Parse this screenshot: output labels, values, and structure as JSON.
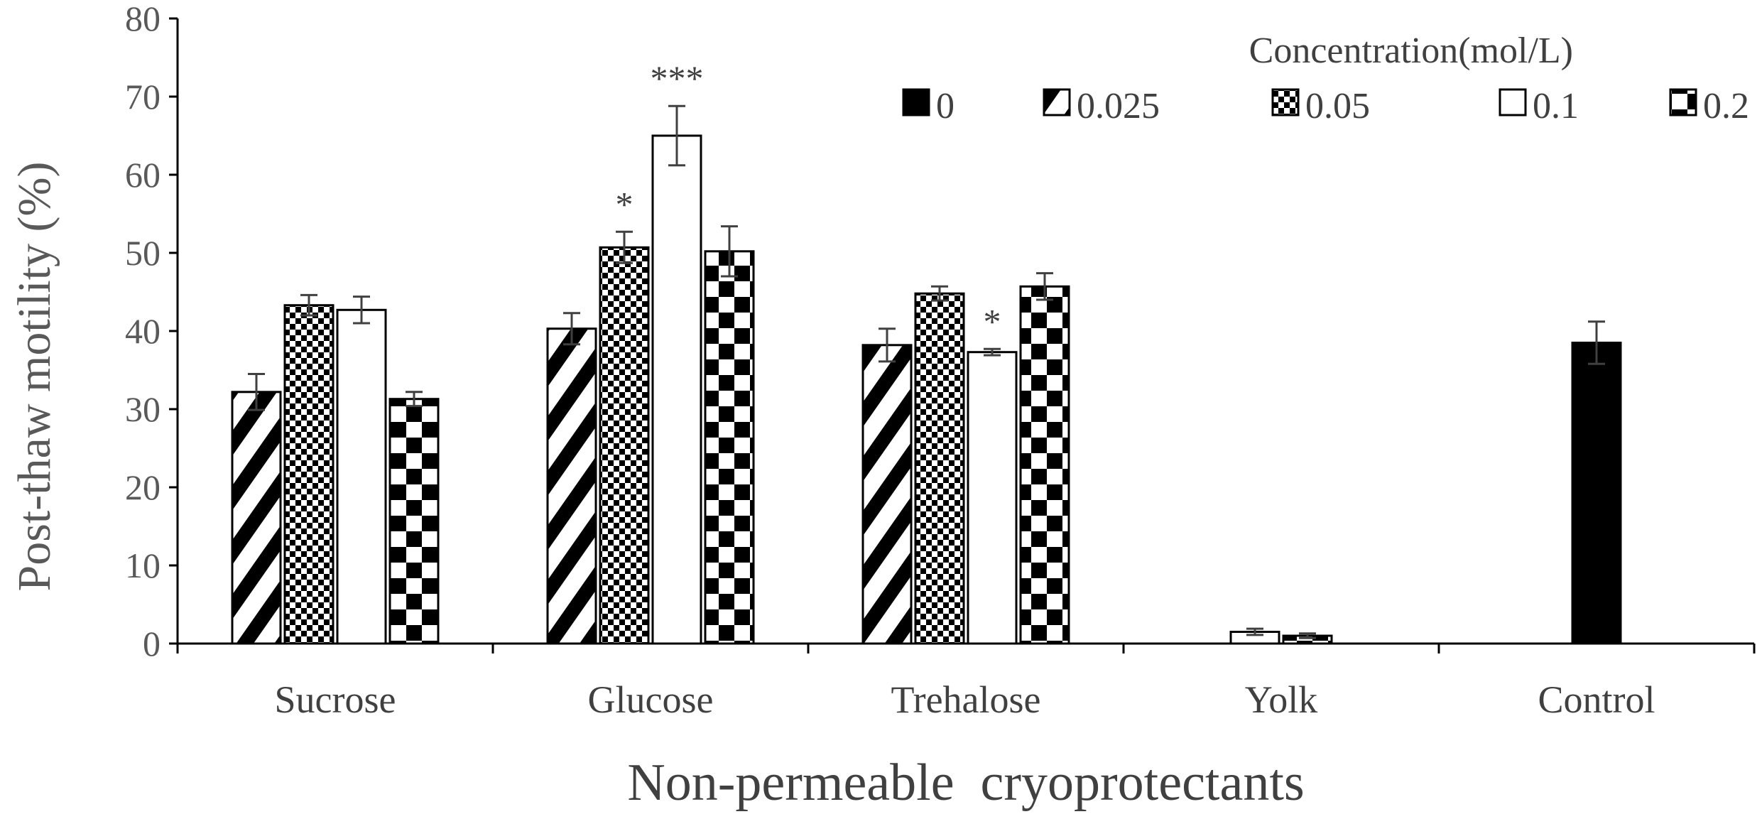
{
  "chart_data": {
    "type": "bar",
    "title": "",
    "xlabel": "Non-permeable  cryoprotectants",
    "ylabel": "Post-thaw motility (%)",
    "ylim": [
      0,
      80
    ],
    "yticks": [
      0,
      10,
      20,
      30,
      40,
      50,
      60,
      70,
      80
    ],
    "grid": false,
    "legend_title": "Concentration(mol/L)",
    "legend_position": "top-right",
    "categories": [
      "Sucrose",
      "Glucose",
      "Trehalose",
      "Yolk",
      "Control"
    ],
    "series": [
      {
        "name": "0",
        "pattern": "solid",
        "values": [
          null,
          null,
          null,
          null,
          38.5
        ],
        "errors": [
          null,
          null,
          null,
          null,
          2.7
        ]
      },
      {
        "name": "0.025",
        "pattern": "diagonal",
        "values": [
          32.2,
          40.3,
          38.2,
          null,
          null
        ],
        "errors": [
          2.3,
          2.0,
          2.1,
          null,
          null
        ]
      },
      {
        "name": "0.05",
        "pattern": "fine-check",
        "values": [
          43.3,
          50.7,
          44.8,
          null,
          null
        ],
        "errors": [
          1.3,
          2.0,
          0.9,
          null,
          null
        ]
      },
      {
        "name": "0.1",
        "pattern": "white",
        "values": [
          42.7,
          65.0,
          37.3,
          1.5,
          null
        ],
        "errors": [
          1.7,
          3.8,
          0.4,
          0.4,
          null
        ]
      },
      {
        "name": "0.2",
        "pattern": "large-check",
        "values": [
          31.3,
          50.2,
          45.7,
          1.0,
          null
        ],
        "errors": [
          0.9,
          3.2,
          1.7,
          0.3,
          null
        ]
      }
    ],
    "annotations": [
      {
        "text": "*",
        "category": "Glucose",
        "series": "0.05"
      },
      {
        "text": "***",
        "category": "Glucose",
        "series": "0.1"
      },
      {
        "text": "*",
        "category": "Trehalose",
        "series": "0.1"
      }
    ]
  }
}
